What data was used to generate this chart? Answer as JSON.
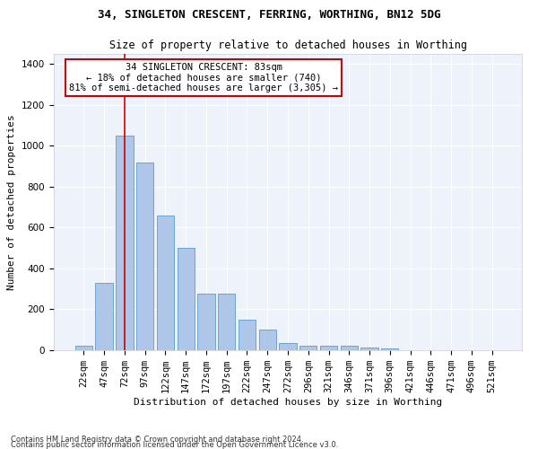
{
  "title1": "34, SINGLETON CRESCENT, FERRING, WORTHING, BN12 5DG",
  "title2": "Size of property relative to detached houses in Worthing",
  "xlabel": "Distribution of detached houses by size in Worthing",
  "ylabel": "Number of detached properties",
  "categories": [
    "22sqm",
    "47sqm",
    "72sqm",
    "97sqm",
    "122sqm",
    "147sqm",
    "172sqm",
    "197sqm",
    "222sqm",
    "247sqm",
    "272sqm",
    "296sqm",
    "321sqm",
    "346sqm",
    "371sqm",
    "396sqm",
    "421sqm",
    "446sqm",
    "471sqm",
    "496sqm",
    "521sqm"
  ],
  "values": [
    20,
    330,
    1050,
    920,
    660,
    500,
    275,
    275,
    150,
    100,
    35,
    20,
    20,
    20,
    15,
    10,
    0,
    0,
    0,
    0,
    0
  ],
  "bar_color": "#aec6e8",
  "bar_edge_color": "#5b9bd5",
  "vline_x": 2,
  "vline_color": "#cc0000",
  "annotation_text": "34 SINGLETON CRESCENT: 83sqm\n← 18% of detached houses are smaller (740)\n81% of semi-detached houses are larger (3,305) →",
  "annotation_box_color": "#ffffff",
  "annotation_box_edge": "#cc0000",
  "ylim": [
    0,
    1450
  ],
  "yticks": [
    0,
    200,
    400,
    600,
    800,
    1000,
    1200,
    1400
  ],
  "footer1": "Contains HM Land Registry data © Crown copyright and database right 2024.",
  "footer2": "Contains public sector information licensed under the Open Government Licence v3.0.",
  "bg_color": "#eef2fa",
  "title1_fontsize": 9,
  "title2_fontsize": 8.5,
  "xlabel_fontsize": 8,
  "ylabel_fontsize": 8,
  "tick_fontsize": 7.5,
  "annot_fontsize": 7.5,
  "footer_fontsize": 6
}
